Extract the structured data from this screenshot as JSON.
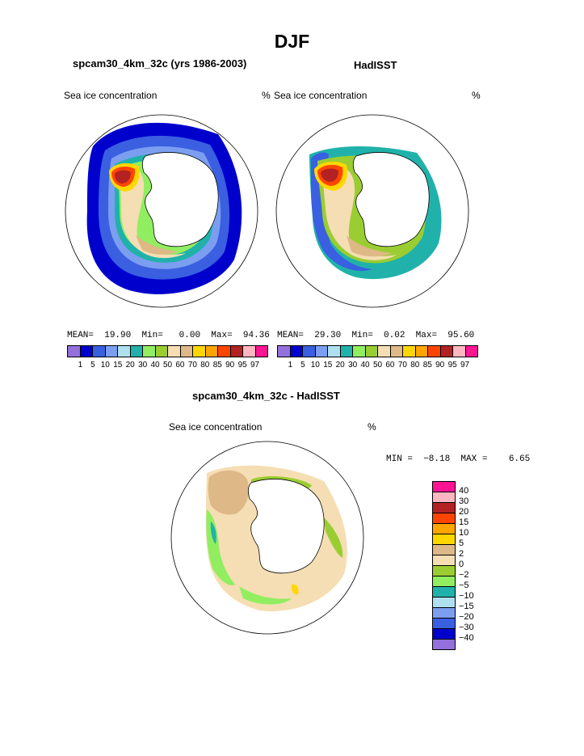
{
  "title": "DJF",
  "panels": [
    {
      "heading": "spcam30_4km_32c (yrs 1986-2003)",
      "variable": "Sea ice concentration",
      "units": "%",
      "stats": {
        "mean_label": "MEAN=",
        "mean": "19.90",
        "min_label": "Min=",
        "min": "0.00",
        "max_label": "Max=",
        "max": "94.36"
      }
    },
    {
      "heading": "HadISST",
      "variable": "Sea ice concentration",
      "units": "%",
      "stats": {
        "mean_label": "MEAN=",
        "mean": "29.30",
        "min_label": "Min=",
        "min": "0.02",
        "max_label": "Max=",
        "max": "95.60"
      }
    }
  ],
  "diff": {
    "heading": "spcam30_4km_32c - HadISST",
    "variable": "Sea ice concentration",
    "units": "%",
    "stats_text": "MIN =  −8.18  MAX =    6.65"
  },
  "concentration_scale": {
    "labels": [
      "1",
      "5",
      "10",
      "15",
      "20",
      "30",
      "40",
      "50",
      "60",
      "70",
      "80",
      "85",
      "90",
      "95",
      "97"
    ],
    "colors": [
      "#9370db",
      "#0000cd",
      "#3a5fe0",
      "#7b9ef0",
      "#aee0f0",
      "#20b2aa",
      "#90ee60",
      "#9acd32",
      "#f5deb3",
      "#deb887",
      "#ffd700",
      "#ffa500",
      "#ff4500",
      "#b22222",
      "#ffb6c1",
      "#ff1493"
    ]
  },
  "difference_scale": {
    "labels": [
      "40",
      "30",
      "20",
      "15",
      "10",
      "5",
      "2",
      "0",
      "−2",
      "−5",
      "−10",
      "−15",
      "−20",
      "−30",
      "−40"
    ],
    "colors": [
      "#ff1493",
      "#ffb6c1",
      "#b22222",
      "#ff4500",
      "#ffa500",
      "#ffd700",
      "#deb887",
      "#f5deb3",
      "#9acd32",
      "#90ee60",
      "#20b2aa",
      "#aee0f0",
      "#7b9ef0",
      "#3a5fe0",
      "#0000cd",
      "#9370db"
    ]
  }
}
